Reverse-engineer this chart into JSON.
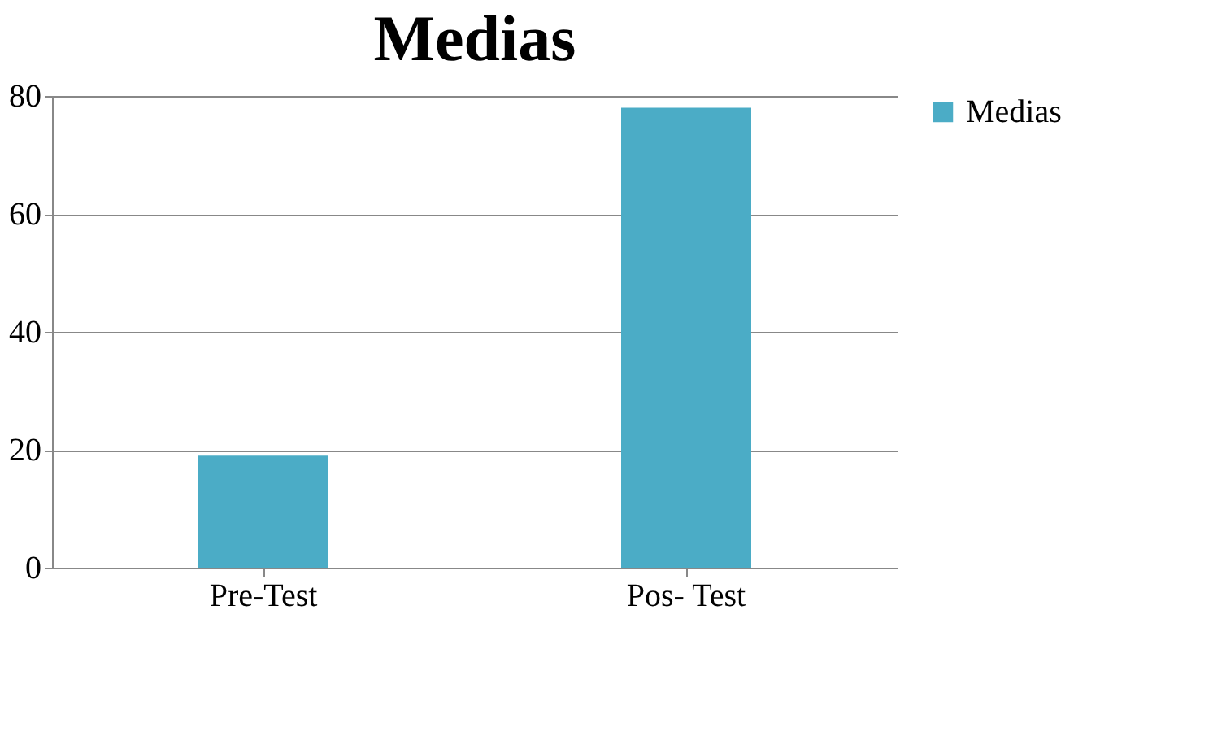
{
  "chart_data": {
    "type": "bar",
    "title": "Medias",
    "categories": [
      "Pre-Test",
      "Pos- Test"
    ],
    "series": [
      {
        "name": "Medias",
        "color": "#4bacc6",
        "values": [
          19,
          78
        ]
      }
    ],
    "ylim": [
      0,
      80
    ],
    "yticks": [
      0,
      20,
      40,
      60,
      80
    ],
    "grid": "y",
    "legend": "right"
  }
}
